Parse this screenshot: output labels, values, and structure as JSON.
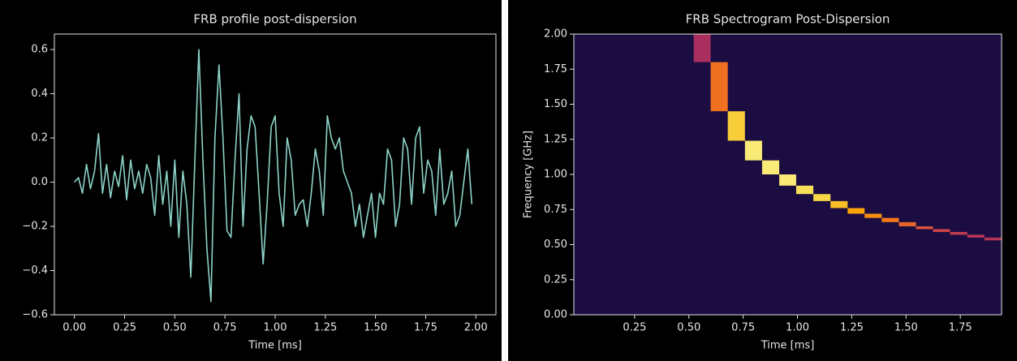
{
  "chart_data": [
    {
      "type": "line",
      "title": "FRB profile post-dispersion",
      "xlabel": "Time [ms]",
      "color": "#8dd3c7",
      "x": [
        0,
        0.02,
        0.04,
        0.06,
        0.08,
        0.1,
        0.12,
        0.14,
        0.16,
        0.18,
        0.2,
        0.22,
        0.24,
        0.26,
        0.28,
        0.3,
        0.32,
        0.34,
        0.36,
        0.38,
        0.4,
        0.42,
        0.44,
        0.46,
        0.48,
        0.5,
        0.52,
        0.54,
        0.56,
        0.58,
        0.6,
        0.62,
        0.64,
        0.66,
        0.68,
        0.7,
        0.72,
        0.74,
        0.76,
        0.78,
        0.8,
        0.82,
        0.84,
        0.86,
        0.88,
        0.9,
        0.92,
        0.94,
        0.96,
        0.98,
        1.0,
        1.02,
        1.04,
        1.06,
        1.08,
        1.1,
        1.12,
        1.14,
        1.16,
        1.18,
        1.2,
        1.22,
        1.24,
        1.26,
        1.28,
        1.3,
        1.32,
        1.34,
        1.36,
        1.38,
        1.4,
        1.42,
        1.44,
        1.46,
        1.48,
        1.5,
        1.52,
        1.54,
        1.56,
        1.58,
        1.6,
        1.62,
        1.64,
        1.66,
        1.68,
        1.7,
        1.72,
        1.74,
        1.76,
        1.78,
        1.8,
        1.82,
        1.84,
        1.86,
        1.88,
        1.9,
        1.92,
        1.94,
        1.96,
        1.98
      ],
      "values": [
        0,
        0.02,
        -0.05,
        0.08,
        -0.03,
        0.05,
        0.22,
        -0.05,
        0.08,
        -0.07,
        0.05,
        -0.02,
        0.12,
        -0.08,
        0.1,
        -0.03,
        0.05,
        -0.05,
        0.08,
        0.02,
        -0.15,
        0.12,
        -0.1,
        0.05,
        -0.2,
        0.1,
        -0.25,
        0.05,
        -0.1,
        -0.43,
        0.1,
        0.6,
        0.1,
        -0.3,
        -0.54,
        0.2,
        0.53,
        0.2,
        -0.22,
        -0.25,
        0.1,
        0.4,
        -0.2,
        0.15,
        0.3,
        0.25,
        -0.05,
        -0.37,
        -0.1,
        0.25,
        0.3,
        -0.05,
        -0.2,
        0.2,
        0.1,
        -0.15,
        -0.1,
        -0.08,
        -0.2,
        -0.05,
        0.15,
        0.05,
        -0.15,
        0.3,
        0.2,
        0.15,
        0.2,
        0.05,
        0,
        -0.05,
        -0.2,
        -0.1,
        -0.25,
        -0.15,
        -0.05,
        -0.25,
        -0.05,
        -0.1,
        0.15,
        0.1,
        -0.2,
        -0.1,
        0.2,
        0.15,
        -0.1,
        0.2,
        0.25,
        -0.05,
        0.1,
        0.05,
        -0.15,
        0.15,
        -0.1,
        -0.05,
        0.05,
        -0.2,
        -0.15,
        0,
        0.15,
        -0.1
      ],
      "xlim": [
        -0.1,
        2.1
      ],
      "ylim": [
        -0.6,
        0.67
      ],
      "xticks": [
        {
          "value": 0,
          "label": "0.00"
        },
        0.25,
        {
          "value": 0.5,
          "label": "0.50"
        },
        0.75,
        {
          "value": 1,
          "label": "1.00"
        },
        1.25,
        {
          "value": 1.5,
          "label": "1.50"
        },
        1.75,
        {
          "value": 2,
          "label": "2.00"
        }
      ],
      "yticks": [
        {
          "value": -0.6,
          "label": "−0.6"
        },
        {
          "value": -0.4,
          "label": "−0.4"
        },
        {
          "value": -0.2,
          "label": "−0.2"
        },
        {
          "value": 0,
          "label": "0.0"
        },
        0.2,
        0.4,
        0.6
      ]
    },
    {
      "type": "heatmap",
      "title": "FRB Spectrogram Post-Dispersion",
      "xlabel": "Time [ms]",
      "ylabel": "Frequency [GHz]",
      "background_value": 0.1,
      "cells": [
        {
          "x": [
            0.522,
            0.6
          ],
          "y": [
            1.8,
            2.0
          ],
          "value": 0.45
        },
        {
          "x": [
            0.6,
            0.679
          ],
          "y": [
            1.45,
            1.8
          ],
          "value": 0.68
        },
        {
          "x": [
            0.679,
            0.758
          ],
          "y": [
            1.24,
            1.45
          ],
          "value": 0.88
        },
        {
          "x": [
            0.758,
            0.837
          ],
          "y": [
            1.1,
            1.24
          ],
          "value": 0.95
        },
        {
          "x": [
            0.837,
            0.916
          ],
          "y": [
            1.0,
            1.1
          ],
          "value": 0.95
        },
        {
          "x": [
            0.916,
            0.994
          ],
          "y": [
            0.92,
            1.0
          ],
          "value": 0.95
        },
        {
          "x": [
            0.994,
            1.073
          ],
          "y": [
            0.86,
            0.92
          ],
          "value": 0.92
        },
        {
          "x": [
            1.073,
            1.152
          ],
          "y": [
            0.81,
            0.86
          ],
          "value": 0.9
        },
        {
          "x": [
            1.152,
            1.231
          ],
          "y": [
            0.76,
            0.81
          ],
          "value": 0.85
        },
        {
          "x": [
            1.231,
            1.309
          ],
          "y": [
            0.72,
            0.76
          ],
          "value": 0.8
        },
        {
          "x": [
            1.309,
            1.388
          ],
          "y": [
            0.69,
            0.72
          ],
          "value": 0.75
        },
        {
          "x": [
            1.388,
            1.467
          ],
          "y": [
            0.66,
            0.69
          ],
          "value": 0.7
        },
        {
          "x": [
            1.467,
            1.546
          ],
          "y": [
            0.63,
            0.66
          ],
          "value": 0.65
        },
        {
          "x": [
            1.546,
            1.624
          ],
          "y": [
            0.61,
            0.63
          ],
          "value": 0.6
        },
        {
          "x": [
            1.624,
            1.703
          ],
          "y": [
            0.59,
            0.61
          ],
          "value": 0.55
        },
        {
          "x": [
            1.703,
            1.782
          ],
          "y": [
            0.57,
            0.59
          ],
          "value": 0.52
        },
        {
          "x": [
            1.782,
            1.861
          ],
          "y": [
            0.55,
            0.57
          ],
          "value": 0.5
        },
        {
          "x": [
            1.861,
            1.94
          ],
          "y": [
            0.53,
            0.55
          ],
          "value": 0.48
        }
      ],
      "xlim": [
        -0.03,
        1.94
      ],
      "ylim": [
        0,
        2
      ],
      "xticks": [
        0.25,
        {
          "value": 0.5,
          "label": "0.50"
        },
        0.75,
        {
          "value": 1,
          "label": "1.00"
        },
        1.25,
        {
          "value": 1.5,
          "label": "1.50"
        },
        1.75
      ],
      "yticks": [
        {
          "value": 0,
          "label": "0.00"
        },
        0.25,
        {
          "value": 0.5,
          "label": "0.50"
        },
        0.75,
        {
          "value": 1,
          "label": "1.00"
        },
        1.25,
        {
          "value": 1.5,
          "label": "1.50"
        },
        1.75,
        {
          "value": 2,
          "label": "2.00"
        }
      ]
    }
  ]
}
